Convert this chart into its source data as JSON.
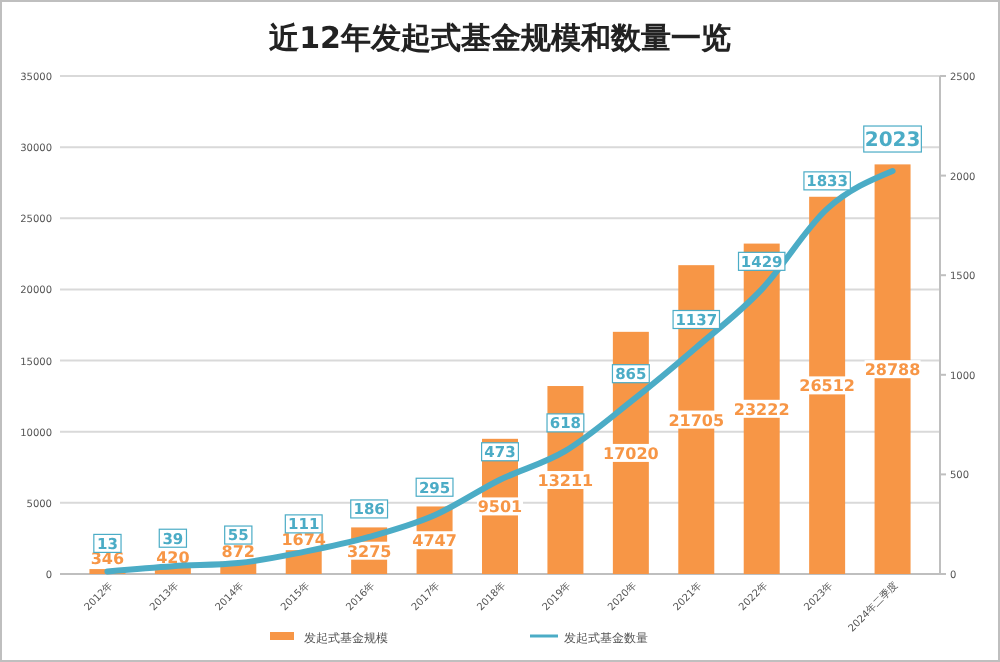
{
  "chart_data": {
    "type": "bar",
    "title": "近12年发起式基金规模和数量一览",
    "categories": [
      "2012年",
      "2013年",
      "2014年",
      "2015年",
      "2016年",
      "2017年",
      "2018年",
      "2019年",
      "2020年",
      "2021年",
      "2022年",
      "2023年",
      "2024年二季度"
    ],
    "series": [
      {
        "name": "发起式基金规模",
        "color": "#f79646",
        "values": [
          346,
          420,
          872,
          1674,
          3275,
          4747,
          9501,
          13211,
          17020,
          21705,
          23222,
          26512,
          28788
        ]
      },
      {
        "name": "发起式基金数量",
        "type": "line",
        "axis": "y2",
        "color": "#4bacc6",
        "values": [
          13,
          39,
          55,
          111,
          186,
          295,
          473,
          618,
          865,
          1137,
          1429,
          1833,
          2023
        ]
      }
    ],
    "ylim": [
      0,
      35000
    ],
    "yticks": [
      0,
      5000,
      10000,
      15000,
      20000,
      25000,
      30000,
      35000
    ],
    "y2lim": [
      0,
      2500
    ],
    "y2ticks": [
      0,
      500,
      1000,
      1500,
      2000,
      2500
    ],
    "grid": "y",
    "legend": "bottom",
    "data_labels": true,
    "marker": "none",
    "line_style": "solid"
  }
}
